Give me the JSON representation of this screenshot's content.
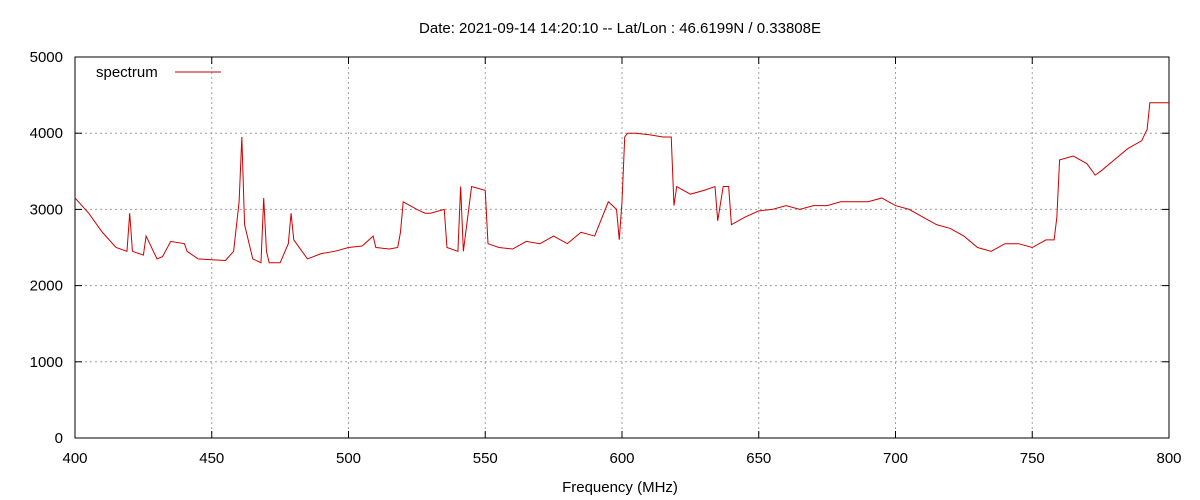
{
  "chart_data": {
    "type": "line",
    "title": "Date: 2021-09-14 14:20:10  --  Lat/Lon : 46.6199N / 0.33808E",
    "xlabel": "Frequency (MHz)",
    "ylabel": "",
    "xlim": [
      400,
      800
    ],
    "ylim": [
      0,
      5000
    ],
    "xticks": [
      400,
      450,
      500,
      550,
      600,
      650,
      700,
      750,
      800
    ],
    "yticks": [
      0,
      1000,
      2000,
      3000,
      4000,
      5000
    ],
    "grid": true,
    "legend_position": "top-left",
    "series": [
      {
        "name": "spectrum",
        "color": "#cc0000",
        "x": [
          400,
          405,
          410,
          415,
          419,
          420,
          421,
          425,
          426,
          430,
          432,
          435,
          440,
          441,
          445,
          450,
          455,
          458,
          460,
          461,
          462,
          465,
          468,
          469,
          470,
          471,
          475,
          478,
          479,
          480,
          485,
          490,
          495,
          500,
          505,
          509,
          510,
          515,
          518,
          519,
          520,
          525,
          528,
          530,
          535,
          536,
          540,
          541,
          542,
          545,
          550,
          551,
          555,
          560,
          565,
          570,
          575,
          580,
          585,
          590,
          595,
          598,
          599,
          600,
          601,
          602,
          605,
          610,
          615,
          618,
          619,
          620,
          625,
          630,
          634,
          635,
          637,
          639,
          640,
          645,
          650,
          655,
          660,
          665,
          670,
          675,
          680,
          685,
          690,
          695,
          700,
          705,
          710,
          715,
          720,
          725,
          730,
          735,
          740,
          745,
          750,
          755,
          758,
          759,
          760,
          765,
          770,
          773,
          775,
          780,
          785,
          790,
          792,
          793,
          795,
          800
        ],
        "values": [
          3150,
          2950,
          2700,
          2500,
          2450,
          2950,
          2450,
          2400,
          2650,
          2350,
          2380,
          2580,
          2550,
          2450,
          2350,
          2340,
          2330,
          2450,
          3100,
          3950,
          2800,
          2350,
          2300,
          3150,
          2450,
          2300,
          2300,
          2550,
          2950,
          2600,
          2350,
          2420,
          2450,
          2500,
          2520,
          2650,
          2500,
          2480,
          2500,
          2700,
          3100,
          3000,
          2950,
          2950,
          3000,
          2500,
          2450,
          3300,
          2450,
          3300,
          3250,
          2550,
          2500,
          2480,
          2580,
          2550,
          2650,
          2550,
          2700,
          2650,
          3100,
          3000,
          2600,
          3100,
          3950,
          4000,
          4000,
          3980,
          3950,
          3950,
          3050,
          3300,
          3200,
          3250,
          3300,
          2850,
          3300,
          3300,
          2800,
          2900,
          2980,
          3000,
          3050,
          3000,
          3050,
          3050,
          3100,
          3100,
          3100,
          3150,
          3050,
          3000,
          2900,
          2800,
          2750,
          2650,
          2500,
          2450,
          2550,
          2550,
          2500,
          2600,
          2600,
          2900,
          3650,
          3700,
          3600,
          3450,
          3500,
          3650,
          3800,
          3900,
          4050,
          4400,
          4400,
          4400
        ]
      }
    ]
  }
}
